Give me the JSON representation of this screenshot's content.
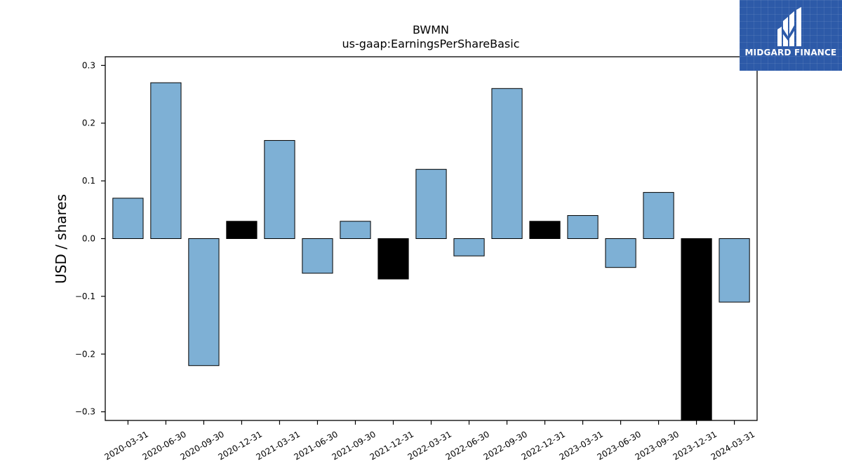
{
  "chart_data": {
    "type": "bar",
    "title": "BWMN",
    "subtitle": "us-gaap:EarningsPerShareBasic",
    "xlabel": "",
    "ylabel": "USD / shares",
    "ylim": [
      -0.315,
      0.315
    ],
    "yticks": [
      0.3,
      0.2,
      0.1,
      0.0,
      -0.1,
      -0.2,
      -0.3
    ],
    "ytick_labels": [
      "0.3",
      "0.2",
      "0.1",
      "0.0",
      "−0.1",
      "−0.2",
      "−0.3"
    ],
    "grid": false,
    "categories": [
      "2020-03-31",
      "2020-06-30",
      "2020-09-30",
      "2020-12-31",
      "2021-03-31",
      "2021-06-30",
      "2021-09-30",
      "2021-12-31",
      "2022-03-31",
      "2022-06-30",
      "2022-09-30",
      "2022-12-31",
      "2023-03-31",
      "2023-06-30",
      "2023-09-30",
      "2023-12-31",
      "2024-03-31"
    ],
    "values": [
      0.07,
      0.27,
      -0.22,
      0.03,
      0.17,
      -0.06,
      0.03,
      -0.07,
      0.12,
      -0.03,
      0.26,
      0.03,
      0.04,
      -0.05,
      0.08,
      -0.32,
      -0.11
    ],
    "bar_colors": [
      "#7eb0d5",
      "#7eb0d5",
      "#7eb0d5",
      "#000000",
      "#7eb0d5",
      "#7eb0d5",
      "#7eb0d5",
      "#000000",
      "#7eb0d5",
      "#7eb0d5",
      "#7eb0d5",
      "#000000",
      "#7eb0d5",
      "#7eb0d5",
      "#7eb0d5",
      "#000000",
      "#7eb0d5"
    ]
  },
  "logo": {
    "text": "MIDGARD FINANCE",
    "background": "#2d5aa8",
    "icon": "midgard-m-logo-icon"
  }
}
